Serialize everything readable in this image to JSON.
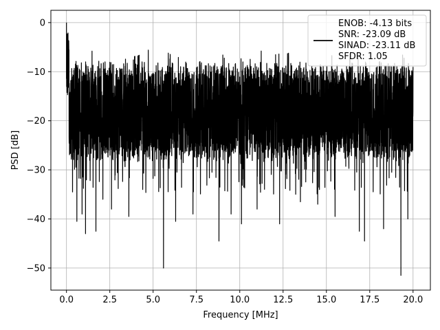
{
  "chart_data": {
    "type": "line",
    "title": "",
    "xlabel": "Frequency [MHz]",
    "ylabel": "PSD [dB]",
    "xlim": [
      -0.9,
      21.0
    ],
    "ylim": [
      -54.5,
      2.5
    ],
    "xticks": [
      0.0,
      2.5,
      5.0,
      7.5,
      10.0,
      12.5,
      15.0,
      17.5,
      20.0
    ],
    "xtick_labels": [
      "0.0",
      "2.5",
      "5.0",
      "7.5",
      "10.0",
      "12.5",
      "15.0",
      "17.5",
      "20.0"
    ],
    "yticks": [
      0,
      -10,
      -20,
      -30,
      -40,
      -50
    ],
    "ytick_labels": [
      "0",
      "−10",
      "−20",
      "−30",
      "−40",
      "−50"
    ],
    "grid": true,
    "legend_position": "top-right",
    "legend_lines": [
      "ENOB: -4.13 bits",
      "SNR: -23.09 dB",
      "SINAD: -23.11 dB",
      "SFDR: 1.05"
    ],
    "line_color": "#000000",
    "series": [
      {
        "x_range": [
          0.0,
          20.0
        ],
        "noise_floor_center": -19.5,
        "noise_upper_envelope": -9.0,
        "noise_lower_envelope": -27.0,
        "peak": {
          "x": 0.0,
          "y": 0.0
        },
        "notable_dips": [
          {
            "x": 0.35,
            "y": -34.5
          },
          {
            "x": 0.6,
            "y": -40.5
          },
          {
            "x": 0.9,
            "y": -39.0
          },
          {
            "x": 1.1,
            "y": -43.0
          },
          {
            "x": 1.7,
            "y": -42.5
          },
          {
            "x": 2.1,
            "y": -36.0
          },
          {
            "x": 2.6,
            "y": -38.0
          },
          {
            "x": 3.6,
            "y": -39.5
          },
          {
            "x": 4.4,
            "y": -34.0
          },
          {
            "x": 5.6,
            "y": -50.0
          },
          {
            "x": 6.3,
            "y": -40.5
          },
          {
            "x": 7.3,
            "y": -39.0
          },
          {
            "x": 8.8,
            "y": -44.5
          },
          {
            "x": 9.5,
            "y": -39.0
          },
          {
            "x": 10.1,
            "y": -41.0
          },
          {
            "x": 11.0,
            "y": -38.0
          },
          {
            "x": 12.3,
            "y": -41.0
          },
          {
            "x": 13.5,
            "y": -36.5
          },
          {
            "x": 14.5,
            "y": -37.0
          },
          {
            "x": 15.5,
            "y": -39.5
          },
          {
            "x": 16.9,
            "y": -42.5
          },
          {
            "x": 17.2,
            "y": -44.5
          },
          {
            "x": 18.3,
            "y": -42.0
          },
          {
            "x": 19.3,
            "y": -51.5
          },
          {
            "x": 19.7,
            "y": -40.0
          }
        ]
      }
    ]
  }
}
